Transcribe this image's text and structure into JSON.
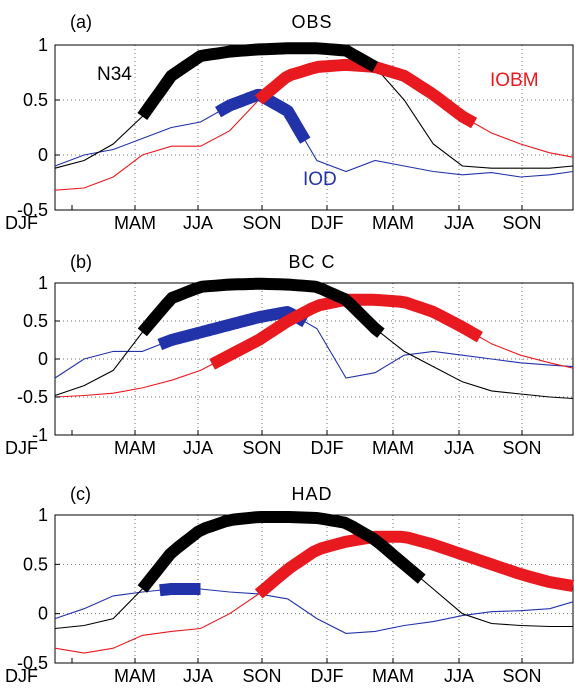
{
  "chart_data": [
    {
      "type": "line",
      "panel_label": "(a)",
      "title": "OBS",
      "x": [
        "DJF",
        "MAM",
        "JJA",
        "SON",
        "DJF",
        "MAM",
        "JJA",
        "SON"
      ],
      "x_range": [
        0,
        8.9
      ],
      "yticks": [
        "1",
        "0.5",
        "0",
        "-0.5"
      ],
      "ylim": [
        -0.5,
        1
      ],
      "grid": true,
      "series": [
        {
          "name": "N34",
          "color": "#000000",
          "x": [
            0,
            0.5,
            1,
            1.5,
            2,
            2.5,
            3,
            3.5,
            4,
            4.5,
            5,
            5.5,
            6,
            6.5,
            7,
            7.5,
            8,
            8.5,
            8.9
          ],
          "y": [
            -0.12,
            -0.05,
            0.1,
            0.35,
            0.72,
            0.9,
            0.94,
            0.96,
            0.97,
            0.97,
            0.95,
            0.8,
            0.5,
            0.1,
            -0.1,
            -0.12,
            -0.12,
            -0.12,
            -0.1
          ],
          "highlight": [
            1.5,
            5.5
          ],
          "label_pos": "left"
        },
        {
          "name": "IOD",
          "color": "#2233aa",
          "x": [
            0,
            0.5,
            1,
            1.5,
            2,
            2.5,
            3,
            3.5,
            4,
            4.5,
            5,
            5.5,
            6,
            6.5,
            7,
            7.5,
            8,
            8.5,
            8.9
          ],
          "y": [
            -0.1,
            0,
            0.05,
            0.15,
            0.25,
            0.3,
            0.45,
            0.55,
            0.4,
            -0.05,
            -0.15,
            -0.05,
            -0.1,
            -0.15,
            -0.18,
            -0.16,
            -0.2,
            -0.18,
            -0.15
          ],
          "highlight": [
            2.8,
            4.3
          ],
          "label_pos": "below"
        },
        {
          "name": "IOBM",
          "color": "#e8191f",
          "x": [
            0,
            0.5,
            1,
            1.5,
            2,
            2.5,
            3,
            3.5,
            4,
            4.5,
            5,
            5.5,
            6,
            6.5,
            7,
            7.5,
            8,
            8.5,
            8.9
          ],
          "y": [
            -0.32,
            -0.3,
            -0.2,
            0,
            0.08,
            0.08,
            0.22,
            0.5,
            0.72,
            0.8,
            0.82,
            0.8,
            0.72,
            0.55,
            0.35,
            0.2,
            0.1,
            0.02,
            -0.02
          ],
          "highlight": [
            3.5,
            7.2
          ],
          "label_pos": "right"
        }
      ]
    },
    {
      "type": "line",
      "panel_label": "(b)",
      "title": "BC C",
      "x": [
        "DJF",
        "MAM",
        "JJA",
        "SON",
        "DJF",
        "MAM",
        "JJA",
        "SON"
      ],
      "x_range": [
        0,
        8.9
      ],
      "yticks": [
        "1",
        "0.5",
        "0",
        "-0.5",
        "-1"
      ],
      "ylim": [
        -1,
        1
      ],
      "grid": true,
      "series": [
        {
          "name": "N34",
          "color": "#000000",
          "x": [
            0,
            0.5,
            1,
            1.5,
            2,
            2.5,
            3,
            3.5,
            4,
            4.5,
            5,
            5.5,
            6,
            6.5,
            7,
            7.5,
            8,
            8.5,
            8.9
          ],
          "y": [
            -0.48,
            -0.35,
            -0.15,
            0.35,
            0.8,
            0.95,
            0.98,
            0.99,
            0.98,
            0.95,
            0.78,
            0.4,
            0.1,
            -0.1,
            -0.3,
            -0.42,
            -0.46,
            -0.5,
            -0.52
          ],
          "highlight": [
            1.5,
            5.6
          ]
        },
        {
          "name": "IOD",
          "color": "#2233aa",
          "x": [
            0,
            0.5,
            1,
            1.5,
            2,
            2.5,
            3,
            3.5,
            4,
            4.5,
            5,
            5.5,
            6,
            6.5,
            7,
            7.5,
            8,
            8.5,
            8.9
          ],
          "y": [
            -0.25,
            0,
            0.1,
            0.1,
            0.25,
            0.35,
            0.45,
            0.55,
            0.62,
            0.4,
            -0.25,
            -0.18,
            0.05,
            0.1,
            0.05,
            0,
            -0.05,
            -0.08,
            -0.1
          ],
          "highlight": [
            1.8,
            4.3
          ]
        },
        {
          "name": "IOBM",
          "color": "#e8191f",
          "x": [
            0,
            0.5,
            1,
            1.5,
            2,
            2.5,
            3,
            3.5,
            4,
            4.5,
            5,
            5.5,
            6,
            6.5,
            7,
            7.5,
            8,
            8.5,
            8.9
          ],
          "y": [
            -0.5,
            -0.48,
            -0.45,
            -0.38,
            -0.28,
            -0.15,
            0.05,
            0.25,
            0.5,
            0.7,
            0.78,
            0.78,
            0.75,
            0.62,
            0.42,
            0.2,
            0.05,
            -0.05,
            -0.12
          ],
          "highlight": [
            2.7,
            7.3
          ]
        }
      ]
    },
    {
      "type": "line",
      "panel_label": "(c)",
      "title": "HAD",
      "x": [
        "DJF",
        "MAM",
        "JJA",
        "SON",
        "DJF",
        "MAM",
        "JJA",
        "SON"
      ],
      "x_range": [
        0,
        8.9
      ],
      "yticks": [
        "1",
        "0.5",
        "0",
        "-0.5"
      ],
      "ylim": [
        -0.5,
        1
      ],
      "grid": true,
      "series": [
        {
          "name": "N34",
          "color": "#000000",
          "x": [
            0,
            0.5,
            1,
            1.5,
            2,
            2.5,
            3,
            3.5,
            4,
            4.5,
            5,
            5.5,
            6,
            6.5,
            7,
            7.5,
            8,
            8.5,
            8.9
          ],
          "y": [
            -0.15,
            -0.12,
            -0.05,
            0.25,
            0.62,
            0.85,
            0.95,
            0.98,
            0.98,
            0.97,
            0.92,
            0.75,
            0.5,
            0.25,
            0,
            -0.1,
            -0.12,
            -0.13,
            -0.13
          ],
          "highlight": [
            1.5,
            6.3
          ]
        },
        {
          "name": "IOD",
          "color": "#2233aa",
          "x": [
            0,
            0.5,
            1,
            1.5,
            2,
            2.5,
            3,
            3.5,
            4,
            4.5,
            5,
            5.5,
            6,
            6.5,
            7,
            7.5,
            8,
            8.5,
            8.9
          ],
          "y": [
            -0.05,
            0.05,
            0.18,
            0.22,
            0.25,
            0.25,
            0.22,
            0.2,
            0.15,
            -0.05,
            -0.2,
            -0.18,
            -0.12,
            -0.08,
            -0.02,
            0.02,
            0.03,
            0.05,
            0.12
          ],
          "highlight": [
            1.8,
            2.5
          ]
        },
        {
          "name": "IOBM",
          "color": "#e8191f",
          "x": [
            0,
            0.5,
            1,
            1.5,
            2,
            2.5,
            3,
            3.5,
            4,
            4.5,
            5,
            5.5,
            6,
            6.5,
            7,
            7.5,
            8,
            8.5,
            8.9
          ],
          "y": [
            -0.35,
            -0.4,
            -0.35,
            -0.22,
            -0.18,
            -0.15,
            0,
            0.2,
            0.45,
            0.65,
            0.73,
            0.78,
            0.78,
            0.7,
            0.6,
            0.5,
            0.4,
            0.32,
            0.28
          ],
          "highlight": [
            3.5,
            8.9
          ]
        }
      ]
    }
  ]
}
